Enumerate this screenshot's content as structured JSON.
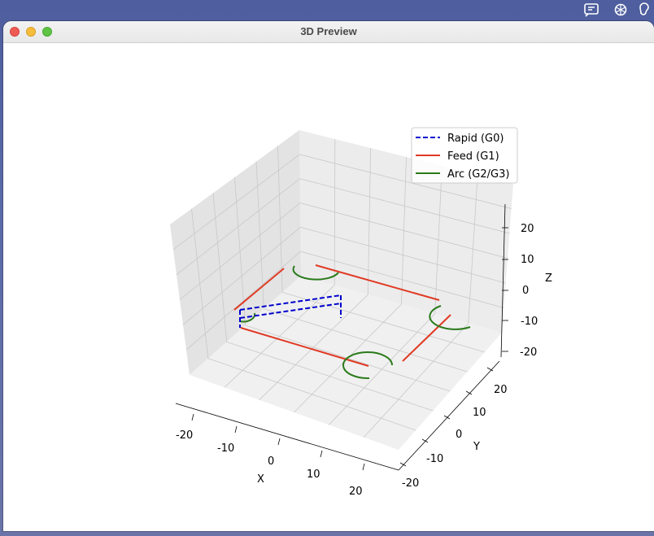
{
  "window": {
    "title": "3D Preview"
  },
  "tray": {
    "icons": [
      "display-icon",
      "chatgpt-icon",
      "ear-icon"
    ]
  },
  "chart_data": {
    "type": "line3d",
    "legend": {
      "placement": "top-right",
      "entries": [
        {
          "label": "Rapid (G0)",
          "color": "#0000cc",
          "style": "dashed"
        },
        {
          "label": "Feed (G1)",
          "color": "#e03a24",
          "style": "solid"
        },
        {
          "label": "Arc (G2/G3)",
          "color": "#2a7a1a",
          "style": "solid"
        }
      ]
    },
    "axes": {
      "x": {
        "label": "X",
        "ticks": [
          "-20",
          "-10",
          "0",
          "10",
          "20"
        ],
        "range": [
          -25,
          25
        ]
      },
      "y": {
        "label": "Y",
        "ticks": [
          "-20",
          "-10",
          "0",
          "10",
          "20"
        ],
        "range": [
          -25,
          25
        ]
      },
      "z": {
        "label": "Z",
        "ticks": [
          "-20",
          "-10",
          "0",
          "10",
          "20"
        ],
        "range": [
          -25,
          25
        ]
      }
    },
    "grid": true
  }
}
